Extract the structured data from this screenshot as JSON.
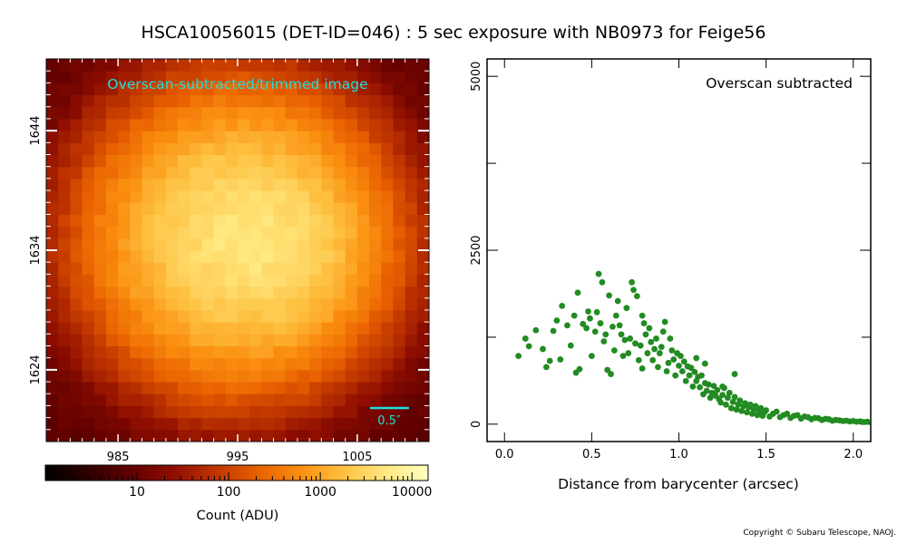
{
  "title": "HSCA10056015 (DET-ID=046) :  5 sec exposure with NB0973 for Feige56",
  "copyright": "Copyright © Subaru Telescope, NAOJ.",
  "colors": {
    "scatter_points": "#228b22",
    "label_accent": "#22dede",
    "colormap": [
      "#000000",
      "#2e0000",
      "#600000",
      "#8f0e00",
      "#bf3500",
      "#e86000",
      "#fb8f10",
      "#fec040",
      "#ffe880",
      "#ffffc0"
    ]
  },
  "chart_data": [
    {
      "type": "heatmap",
      "annotation": "Overscan-subtracted/trimmed image",
      "scale_bar_label": "0.5″",
      "x_ticks": [
        985,
        995,
        1005
      ],
      "y_ticks": [
        1624,
        1634,
        1644
      ],
      "xlim": [
        979,
        1011
      ],
      "ylim": [
        1618,
        1650
      ],
      "colorbar": {
        "scale": "log",
        "tick_labels": [
          "10",
          "100",
          "1000",
          "10000"
        ],
        "label": "Count (ADU)",
        "range": [
          1,
          15000
        ]
      },
      "source": {
        "peak_adu": 5000,
        "background_adu": 8,
        "peak_x": 995,
        "peak_y": 1635
      }
    },
    {
      "type": "scatter",
      "annotation": "Overscan subtracted",
      "xlabel": "Distance from barycenter (arcsec)",
      "ylabel": "",
      "x_ticks": [
        "0.0",
        "0.5",
        "1.0",
        "1.5",
        "2.0"
      ],
      "y_ticks": [
        "0",
        "2500",
        "5000"
      ],
      "xlim": [
        -0.1,
        2.1
      ],
      "ylim": [
        -250,
        5250
      ],
      "points": [
        [
          0.08,
          980
        ],
        [
          0.12,
          1230
        ],
        [
          0.14,
          1120
        ],
        [
          0.18,
          1350
        ],
        [
          0.22,
          1080
        ],
        [
          0.24,
          820
        ],
        [
          0.26,
          910
        ],
        [
          0.28,
          1340
        ],
        [
          0.3,
          1490
        ],
        [
          0.32,
          930
        ],
        [
          0.33,
          1700
        ],
        [
          0.36,
          1420
        ],
        [
          0.38,
          1130
        ],
        [
          0.4,
          1560
        ],
        [
          0.41,
          740
        ],
        [
          0.42,
          1890
        ],
        [
          0.43,
          790
        ],
        [
          0.45,
          1440
        ],
        [
          0.47,
          1380
        ],
        [
          0.48,
          1620
        ],
        [
          0.49,
          1520
        ],
        [
          0.5,
          980
        ],
        [
          0.52,
          1330
        ],
        [
          0.53,
          1610
        ],
        [
          0.54,
          2160
        ],
        [
          0.55,
          1450
        ],
        [
          0.56,
          2040
        ],
        [
          0.57,
          1190
        ],
        [
          0.58,
          1290
        ],
        [
          0.59,
          780
        ],
        [
          0.6,
          1850
        ],
        [
          0.61,
          720
        ],
        [
          0.62,
          1400
        ],
        [
          0.63,
          1060
        ],
        [
          0.64,
          1560
        ],
        [
          0.65,
          1770
        ],
        [
          0.66,
          1420
        ],
        [
          0.67,
          1290
        ],
        [
          0.68,
          980
        ],
        [
          0.69,
          1210
        ],
        [
          0.7,
          1670
        ],
        [
          0.71,
          1020
        ],
        [
          0.72,
          1230
        ],
        [
          0.73,
          2040
        ],
        [
          0.74,
          1930
        ],
        [
          0.75,
          1160
        ],
        [
          0.76,
          1840
        ],
        [
          0.77,
          920
        ],
        [
          0.78,
          1130
        ],
        [
          0.79,
          1560
        ],
        [
          0.79,
          800
        ],
        [
          0.8,
          1450
        ],
        [
          0.81,
          1290
        ],
        [
          0.82,
          1020
        ],
        [
          0.83,
          1380
        ],
        [
          0.84,
          1180
        ],
        [
          0.85,
          920
        ],
        [
          0.86,
          1080
        ],
        [
          0.87,
          1230
        ],
        [
          0.88,
          820
        ],
        [
          0.89,
          1020
        ],
        [
          0.9,
          1110
        ],
        [
          0.91,
          1330
        ],
        [
          0.92,
          1470
        ],
        [
          0.93,
          760
        ],
        [
          0.94,
          880
        ],
        [
          0.95,
          1230
        ],
        [
          0.96,
          1060
        ],
        [
          0.97,
          930
        ],
        [
          0.98,
          700
        ],
        [
          0.99,
          1020
        ],
        [
          1.0,
          840
        ],
        [
          1.01,
          980
        ],
        [
          1.02,
          760
        ],
        [
          1.03,
          900
        ],
        [
          1.04,
          620
        ],
        [
          1.05,
          830
        ],
        [
          1.06,
          700
        ],
        [
          1.07,
          810
        ],
        [
          1.08,
          540
        ],
        [
          1.09,
          750
        ],
        [
          1.1,
          620
        ],
        [
          1.11,
          680
        ],
        [
          1.12,
          530
        ],
        [
          1.13,
          700
        ],
        [
          1.14,
          430
        ],
        [
          1.15,
          590
        ],
        [
          1.16,
          480
        ],
        [
          1.17,
          570
        ],
        [
          1.18,
          380
        ],
        [
          1.19,
          450
        ],
        [
          1.2,
          550
        ],
        [
          1.21,
          410
        ],
        [
          1.22,
          490
        ],
        [
          1.23,
          360
        ],
        [
          1.24,
          310
        ],
        [
          1.25,
          420
        ],
        [
          1.26,
          520
        ],
        [
          1.27,
          280
        ],
        [
          1.28,
          380
        ],
        [
          1.29,
          450
        ],
        [
          1.3,
          230
        ],
        [
          1.31,
          320
        ],
        [
          1.32,
          390
        ],
        [
          1.33,
          210
        ],
        [
          1.34,
          280
        ],
        [
          1.35,
          340
        ],
        [
          1.36,
          190
        ],
        [
          1.37,
          260
        ],
        [
          1.38,
          300
        ],
        [
          1.39,
          170
        ],
        [
          1.4,
          240
        ],
        [
          1.41,
          280
        ],
        [
          1.42,
          150
        ],
        [
          1.43,
          210
        ],
        [
          1.44,
          260
        ],
        [
          1.45,
          130
        ],
        [
          1.46,
          190
        ],
        [
          1.47,
          230
        ],
        [
          1.48,
          120
        ],
        [
          1.49,
          170
        ],
        [
          1.5,
          200
        ],
        [
          1.52,
          110
        ],
        [
          1.54,
          150
        ],
        [
          1.56,
          180
        ],
        [
          1.58,
          100
        ],
        [
          1.6,
          130
        ],
        [
          1.62,
          150
        ],
        [
          1.64,
          90
        ],
        [
          1.66,
          120
        ],
        [
          1.68,
          130
        ],
        [
          1.7,
          80
        ],
        [
          1.72,
          110
        ],
        [
          1.74,
          100
        ],
        [
          1.76,
          70
        ],
        [
          1.78,
          90
        ],
        [
          1.8,
          85
        ],
        [
          1.82,
          60
        ],
        [
          1.84,
          75
        ],
        [
          1.86,
          70
        ],
        [
          1.88,
          50
        ],
        [
          1.9,
          60
        ],
        [
          1.92,
          55
        ],
        [
          1.94,
          45
        ],
        [
          1.96,
          50
        ],
        [
          1.98,
          40
        ],
        [
          2.0,
          45
        ],
        [
          2.02,
          35
        ],
        [
          2.04,
          40
        ],
        [
          2.06,
          30
        ],
        [
          2.08,
          35
        ],
        [
          1.25,
          540
        ],
        [
          1.15,
          870
        ],
        [
          1.32,
          720
        ],
        [
          1.1,
          950
        ]
      ]
    }
  ]
}
